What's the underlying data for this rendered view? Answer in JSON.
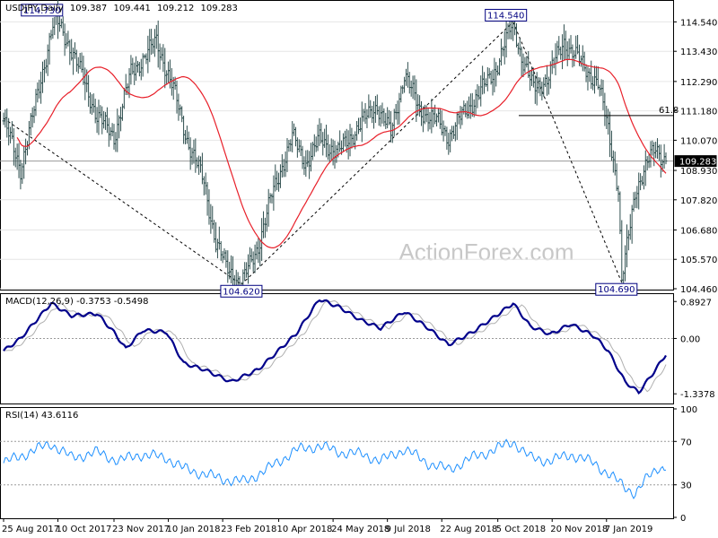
{
  "chart_data": [
    {
      "type": "ohlc",
      "title": "USDJPY,Daily",
      "ohlc_header": [
        "109.387",
        "109.441",
        "109.212",
        "109.283"
      ],
      "ylim": [
        104.46,
        115.3
      ],
      "y_ticks": [
        "114.540",
        "113.430",
        "112.290",
        "111.180",
        "110.070",
        "108.930",
        "107.820",
        "106.680",
        "105.570",
        "104.460"
      ],
      "last_price": "109.283",
      "x_labels": [
        "25 Aug 2017",
        "10 Oct 2017",
        "23 Nov 2017",
        "10 Jan 2018",
        "23 Feb 2018",
        "10 Apr 2018",
        "24 May 2018",
        "9 Jul 2018",
        "22 Aug 2018",
        "5 Oct 2018",
        "20 Nov 2018",
        "7 Jan 2019"
      ],
      "annotations": [
        {
          "text": "114.730",
          "date_index": 30,
          "value": 114.73
        },
        {
          "text": "104.620",
          "date_index": 140,
          "value": 104.62
        },
        {
          "text": "114.540",
          "date_index": 300,
          "value": 114.54
        },
        {
          "text": "104.690",
          "date_index": 364,
          "value": 104.69
        }
      ],
      "fib_label": "61.8",
      "fib_level": 111.0,
      "watermark": "ActionForex.com",
      "colors": {
        "bars": "#2f4f4f",
        "ma": "#e8202a",
        "grid": "#808080",
        "label_box": "#000080"
      },
      "keypoints": [
        [
          0,
          110.8
        ],
        [
          10,
          109.0
        ],
        [
          18,
          111.2
        ],
        [
          30,
          114.73
        ],
        [
          40,
          113.5
        ],
        [
          55,
          111.0
        ],
        [
          65,
          110.2
        ],
        [
          75,
          112.6
        ],
        [
          90,
          113.8
        ],
        [
          100,
          112.0
        ],
        [
          108,
          110.1
        ],
        [
          118,
          108.5
        ],
        [
          125,
          106.2
        ],
        [
          131,
          105.3
        ],
        [
          140,
          104.62
        ],
        [
          150,
          106.1
        ],
        [
          158,
          108.0
        ],
        [
          170,
          110.2
        ],
        [
          178,
          109.2
        ],
        [
          186,
          110.1
        ],
        [
          197,
          109.6
        ],
        [
          208,
          110.5
        ],
        [
          220,
          111.4
        ],
        [
          228,
          110.3
        ],
        [
          236,
          112.6
        ],
        [
          245,
          111.2
        ],
        [
          255,
          110.8
        ],
        [
          262,
          110.2
        ],
        [
          270,
          111.0
        ],
        [
          282,
          112.0
        ],
        [
          290,
          112.8
        ],
        [
          300,
          114.54
        ],
        [
          305,
          113.2
        ],
        [
          312,
          112.0
        ],
        [
          320,
          112.4
        ],
        [
          330,
          113.8
        ],
        [
          340,
          113.0
        ],
        [
          350,
          112.2
        ],
        [
          356,
          110.5
        ],
        [
          362,
          108.2
        ],
        [
          364,
          104.69
        ],
        [
          372,
          108.2
        ],
        [
          380,
          109.3
        ],
        [
          384,
          109.8
        ],
        [
          390,
          109.28
        ]
      ]
    },
    {
      "type": "line",
      "title": "MACD(12,26,9) -0.3753 -0.5498",
      "ylim": [
        -1.55,
        1.05
      ],
      "y_ticks": [
        "0.8927",
        "0.00",
        "-1.3378"
      ],
      "series": [],
      "keypoints": [
        [
          0,
          -0.3
        ],
        [
          10,
          0.0
        ],
        [
          28,
          0.85
        ],
        [
          40,
          0.55
        ],
        [
          55,
          0.6
        ],
        [
          65,
          0.15
        ],
        [
          72,
          -0.25
        ],
        [
          82,
          0.2
        ],
        [
          96,
          0.15
        ],
        [
          106,
          -0.6
        ],
        [
          118,
          -0.75
        ],
        [
          134,
          -1.05
        ],
        [
          150,
          -0.75
        ],
        [
          172,
          0.1
        ],
        [
          186,
          0.95
        ],
        [
          198,
          0.75
        ],
        [
          210,
          0.45
        ],
        [
          222,
          0.25
        ],
        [
          236,
          0.65
        ],
        [
          250,
          0.25
        ],
        [
          262,
          -0.15
        ],
        [
          276,
          0.15
        ],
        [
          290,
          0.55
        ],
        [
          300,
          0.85
        ],
        [
          310,
          0.3
        ],
        [
          322,
          0.1
        ],
        [
          334,
          0.35
        ],
        [
          348,
          0.05
        ],
        [
          356,
          -0.3
        ],
        [
          366,
          -1.05
        ],
        [
          374,
          -1.3
        ],
        [
          384,
          -0.75
        ],
        [
          390,
          -0.38
        ]
      ],
      "signal_lag": 5
    },
    {
      "type": "line",
      "title": "RSI(14) 43.6116",
      "ylim": [
        0,
        100
      ],
      "y_ticks": [
        "100",
        "70",
        "30",
        "0"
      ],
      "levels": [
        70,
        30
      ],
      "series": [],
      "keypoints": [
        [
          0,
          50
        ],
        [
          12,
          58
        ],
        [
          28,
          68
        ],
        [
          40,
          55
        ],
        [
          55,
          60
        ],
        [
          68,
          52
        ],
        [
          80,
          58
        ],
        [
          96,
          55
        ],
        [
          106,
          45
        ],
        [
          118,
          40
        ],
        [
          130,
          35
        ],
        [
          142,
          33
        ],
        [
          156,
          45
        ],
        [
          172,
          62
        ],
        [
          186,
          66
        ],
        [
          198,
          60
        ],
        [
          212,
          58
        ],
        [
          222,
          52
        ],
        [
          236,
          63
        ],
        [
          250,
          50
        ],
        [
          262,
          44
        ],
        [
          276,
          55
        ],
        [
          290,
          63
        ],
        [
          300,
          70
        ],
        [
          310,
          55
        ],
        [
          322,
          52
        ],
        [
          334,
          58
        ],
        [
          348,
          50
        ],
        [
          356,
          40
        ],
        [
          366,
          28
        ],
        [
          372,
          22
        ],
        [
          380,
          38
        ],
        [
          386,
          47
        ],
        [
          390,
          43.6
        ]
      ]
    }
  ]
}
